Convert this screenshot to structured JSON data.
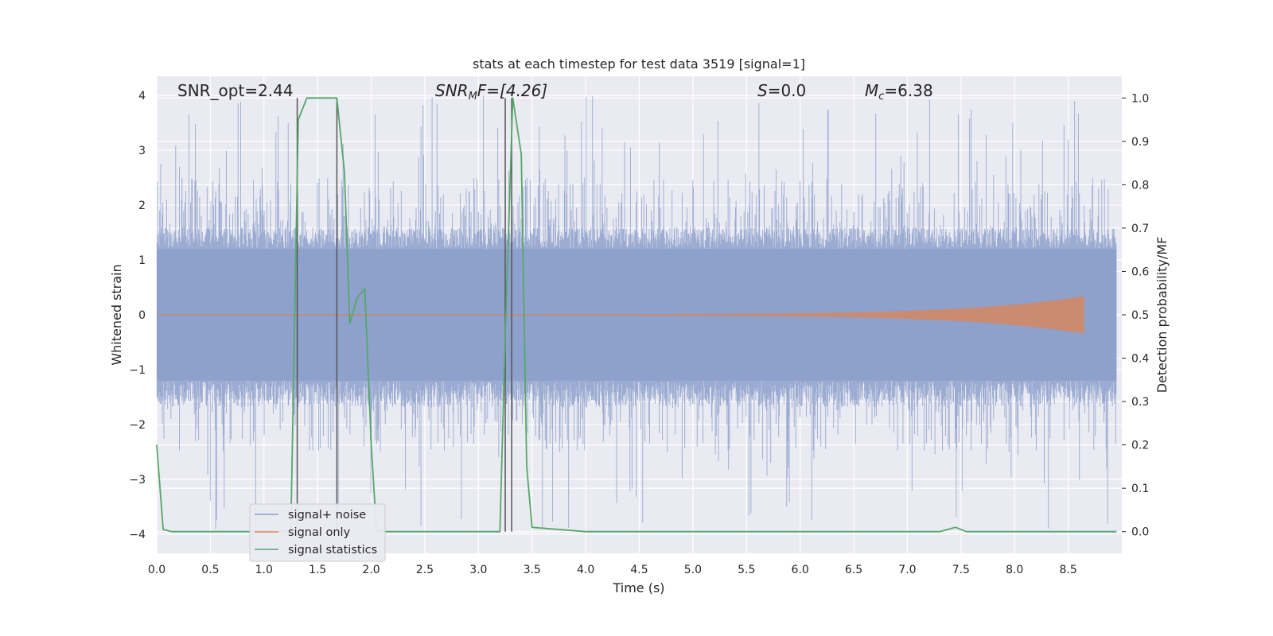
{
  "chart_data": {
    "type": "line",
    "title": "stats at each timestep for test data 3519 [signal=1]",
    "xlabel": "Time (s)",
    "ylabel": "Whitened strain",
    "ylabel_right": "Detection probability/MF",
    "xlim": [
      0.0,
      9.0
    ],
    "ylim": [
      -4.35,
      4.35
    ],
    "ylim_right": [
      -0.05,
      1.05
    ],
    "x_ticks": [
      "0.0",
      "0.5",
      "1.0",
      "1.5",
      "2.0",
      "2.5",
      "3.0",
      "3.5",
      "4.0",
      "4.5",
      "5.0",
      "5.5",
      "6.0",
      "6.5",
      "7.0",
      "7.5",
      "8.0",
      "8.5"
    ],
    "y_ticks": [
      "4",
      "3",
      "2",
      "1",
      "0",
      "−1",
      "−2",
      "−3",
      "−4"
    ],
    "y_ticks_right": [
      "1.0",
      "0.9",
      "0.8",
      "0.7",
      "0.6",
      "0.5",
      "0.4",
      "0.3",
      "0.2",
      "0.1",
      "0.0"
    ],
    "grid": true,
    "legend_position": "lower-left",
    "annotations": {
      "snr_opt": "SNR_opt=2.44",
      "snr_mf_main": "SNR",
      "snr_mf_sub": "M",
      "snr_mf_rest": "F=[4.26]",
      "s_main": "S",
      "s_rest": "=0.0",
      "mc_main": "M",
      "mc_sub": "c",
      "mc_rest": "=6.38"
    },
    "series": [
      {
        "name": "signal+ noise",
        "color": "#8da0cb",
        "description_stats": {
          "typical_envelope": 1.6,
          "peak_max": 4.0,
          "peak_min": -3.95
        }
      },
      {
        "name": "signal only",
        "color": "#dd8452",
        "signal_end_time": 8.65,
        "max_amplitude": 0.33
      },
      {
        "name": "signal statistics",
        "color": "#55a868",
        "x": [
          0.0,
          0.06,
          0.14,
          0.5,
          1.0,
          1.25,
          1.32,
          1.4,
          1.5,
          1.6,
          1.68,
          1.75,
          1.8,
          1.87,
          1.94,
          2.0,
          2.05,
          2.5,
          3.0,
          3.2,
          3.25,
          3.32,
          3.4,
          3.45,
          3.5,
          4.0,
          5.0,
          6.0,
          7.0,
          7.3,
          7.45,
          7.55,
          8.0,
          8.95
        ],
        "values": [
          0.2,
          0.005,
          0.0,
          0.0,
          0.0,
          0.0,
          0.95,
          1.0,
          1.0,
          1.0,
          1.0,
          0.83,
          0.48,
          0.54,
          0.56,
          0.2,
          0.0,
          0.0,
          0.0,
          0.0,
          0.45,
          1.0,
          0.87,
          0.15,
          0.01,
          0.0,
          0.0,
          0.0,
          0.0,
          0.0,
          0.01,
          0.0,
          0.0,
          0.0
        ]
      },
      {
        "name": "",
        "color": "#555555",
        "type": "vlines",
        "x": [
          1.31,
          1.68,
          3.25,
          3.31
        ]
      }
    ]
  }
}
